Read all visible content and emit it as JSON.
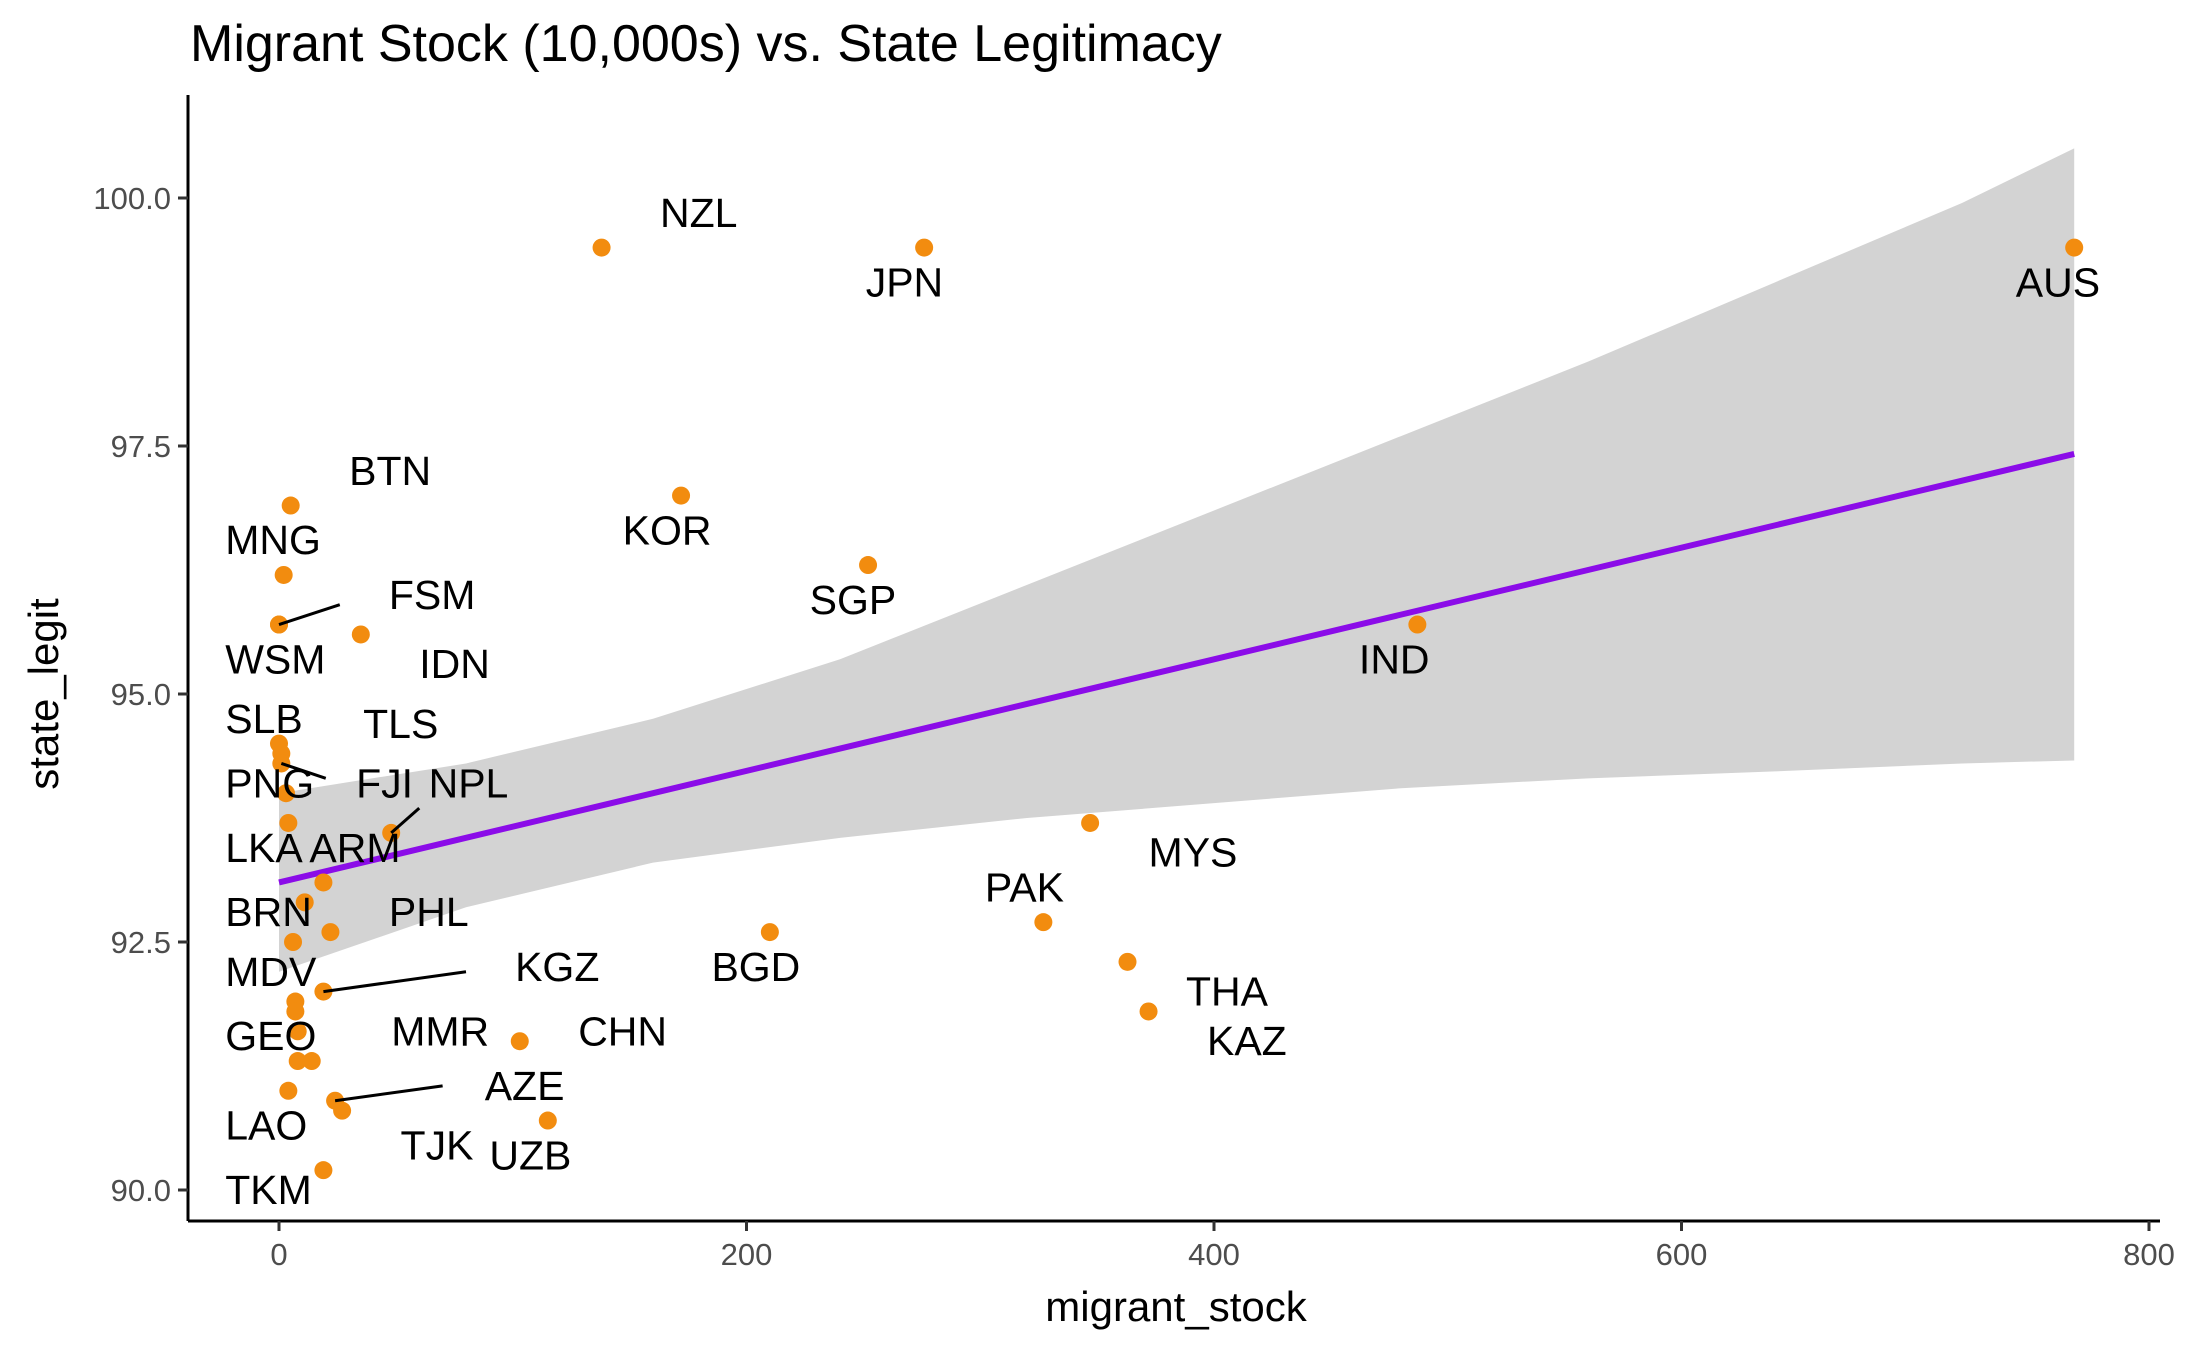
{
  "chart_data": {
    "type": "scatter",
    "title": "Migrant Stock (10,000s) vs. State Legitimacy",
    "xlabel": "migrant_stock",
    "ylabel": "state_legit",
    "xlim": [
      -20,
      800
    ],
    "ylim": [
      89.7,
      101.0
    ],
    "xticks": [
      0,
      200,
      400,
      600,
      800
    ],
    "xtick_labels": [
      "0",
      "200",
      "400",
      "600",
      "800"
    ],
    "yticks": [
      90.0,
      92.5,
      95.0,
      97.5,
      100.0
    ],
    "ytick_labels": [
      "90.0",
      "92.5",
      "95.0",
      "97.5",
      "100.0"
    ],
    "grid": false,
    "colors": {
      "point": "#f28c0f",
      "fit_line": "#8b0ce8",
      "confidence_band": "#d3d3d3",
      "axis": "#000000",
      "tick_text": "#4d4d4d"
    },
    "fit": {
      "method": "lm",
      "x": [
        0,
        80,
        160,
        240,
        320,
        400,
        480,
        560,
        640,
        720,
        768
      ],
      "y": [
        93.1,
        93.55,
        94.0,
        94.45,
        94.9,
        95.35,
        95.8,
        96.25,
        96.7,
        97.15,
        97.42
      ],
      "lower": [
        92.2,
        92.85,
        93.3,
        93.55,
        93.75,
        93.9,
        94.05,
        94.15,
        94.22,
        94.3,
        94.33
      ],
      "upper": [
        94.0,
        94.3,
        94.75,
        95.35,
        96.1,
        96.85,
        97.6,
        98.35,
        99.15,
        99.95,
        100.5
      ]
    },
    "points": [
      {
        "label": "NZL",
        "x": 138,
        "y": 99.5
      },
      {
        "label": "JPN",
        "x": 276,
        "y": 99.5
      },
      {
        "label": "AUS",
        "x": 768,
        "y": 99.5
      },
      {
        "label": "BTN",
        "x": 5,
        "y": 96.9
      },
      {
        "label": "KOR",
        "x": 172,
        "y": 97.0
      },
      {
        "label": "MNG",
        "x": 2,
        "y": 96.2
      },
      {
        "label": "SGP",
        "x": 252,
        "y": 96.3
      },
      {
        "label": "FSM",
        "x": 0,
        "y": 95.7
      },
      {
        "label": "IDN",
        "x": 35,
        "y": 95.6
      },
      {
        "label": "WSM",
        "x": 0,
        "y": 95.7
      },
      {
        "label": "IND",
        "x": 487,
        "y": 95.7
      },
      {
        "label": "SLB",
        "x": 0,
        "y": 94.5
      },
      {
        "label": "TLS",
        "x": 1,
        "y": 94.4
      },
      {
        "label": "FJI",
        "x": 1,
        "y": 94.3
      },
      {
        "label": "PNG",
        "x": 3,
        "y": 94.0
      },
      {
        "label": "NPL",
        "x": 48,
        "y": 93.6
      },
      {
        "label": "LKA",
        "x": 4,
        "y": 93.7
      },
      {
        "label": "ARM",
        "x": 19,
        "y": 93.1
      },
      {
        "label": "MYS",
        "x": 347,
        "y": 93.7
      },
      {
        "label": "BRN",
        "x": 11,
        "y": 92.9
      },
      {
        "label": "PHL",
        "x": 22,
        "y": 92.6
      },
      {
        "label": "PAK",
        "x": 327,
        "y": 92.7
      },
      {
        "label": "BGD",
        "x": 210,
        "y": 92.6
      },
      {
        "label": "MDV",
        "x": 6,
        "y": 92.5
      },
      {
        "label": "KGZ",
        "x": 19,
        "y": 92.0
      },
      {
        "label": "THA",
        "x": 363,
        "y": 92.3
      },
      {
        "label": "GEO",
        "x": 7,
        "y": 91.9
      },
      {
        "label": "MMR",
        "x": 7,
        "y": 91.8
      },
      {
        "label": "KAZ",
        "x": 372,
        "y": 91.8
      },
      {
        "label": "CHN",
        "x": 103,
        "y": 91.5
      },
      {
        "label": "AZE",
        "x": 24,
        "y": 90.9
      },
      {
        "label": "TJK",
        "x": 27,
        "y": 90.8
      },
      {
        "label": "UZB",
        "x": 115,
        "y": 90.7
      },
      {
        "label": "LAO",
        "x": 4,
        "y": 91.0
      },
      {
        "label": "TKM",
        "x": 19,
        "y": 90.2
      },
      {
        "label": "",
        "x": 8,
        "y": 91.6
      },
      {
        "label": "",
        "x": 8,
        "y": 91.3
      },
      {
        "label": "",
        "x": 14,
        "y": 91.3
      }
    ],
    "labels": [
      {
        "text": "NZL",
        "x": 163,
        "y": 99.85
      },
      {
        "text": "JPN",
        "x": 251,
        "y": 99.15
      },
      {
        "text": "AUS",
        "x": 743,
        "y": 99.15
      },
      {
        "text": "BTN",
        "x": 30,
        "y": 97.25
      },
      {
        "text": "KOR",
        "x": 147,
        "y": 96.65
      },
      {
        "text": "MNG",
        "x": -23,
        "y": 96.55
      },
      {
        "text": "SGP",
        "x": 227,
        "y": 95.95
      },
      {
        "text": "FSM",
        "x": 47,
        "y": 96.0
      },
      {
        "text": "IDN",
        "x": 60,
        "y": 95.3
      },
      {
        "text": "WSM",
        "x": -23,
        "y": 95.35
      },
      {
        "text": "IND",
        "x": 462,
        "y": 95.35
      },
      {
        "text": "SLB",
        "x": -23,
        "y": 94.75
      },
      {
        "text": "TLS",
        "x": 36,
        "y": 94.7
      },
      {
        "text": "FJI",
        "x": 33,
        "y": 94.1
      },
      {
        "text": "PNG",
        "x": -23,
        "y": 94.1
      },
      {
        "text": "NPL",
        "x": 64,
        "y": 94.1
      },
      {
        "text": "LKA",
        "x": -23,
        "y": 93.45
      },
      {
        "text": "ARM",
        "x": 13,
        "y": 93.45
      },
      {
        "text": "MYS",
        "x": 372,
        "y": 93.4
      },
      {
        "text": "BRN",
        "x": -23,
        "y": 92.8
      },
      {
        "text": "PHL",
        "x": 47,
        "y": 92.8
      },
      {
        "text": "PAK",
        "x": 302,
        "y": 93.05
      },
      {
        "text": "BGD",
        "x": 185,
        "y": 92.25
      },
      {
        "text": "MDV",
        "x": -23,
        "y": 92.2
      },
      {
        "text": "KGZ",
        "x": 101,
        "y": 92.25
      },
      {
        "text": "THA",
        "x": 388,
        "y": 92.0
      },
      {
        "text": "GEO",
        "x": -23,
        "y": 91.55
      },
      {
        "text": "MMR",
        "x": 48,
        "y": 91.6
      },
      {
        "text": "KAZ",
        "x": 397,
        "y": 91.5
      },
      {
        "text": "CHN",
        "x": 128,
        "y": 91.6
      },
      {
        "text": "AZE",
        "x": 88,
        "y": 91.05
      },
      {
        "text": "TJK",
        "x": 52,
        "y": 90.45
      },
      {
        "text": "UZB",
        "x": 90,
        "y": 90.35
      },
      {
        "text": "LAO",
        "x": -23,
        "y": 90.65
      },
      {
        "text": "TKM",
        "x": -23,
        "y": 90.0
      }
    ],
    "leaders": [
      {
        "from": [
          0,
          95.7
        ],
        "to": [
          26,
          95.9
        ]
      },
      {
        "from": [
          1,
          94.3
        ],
        "to": [
          20,
          94.15
        ]
      },
      {
        "from": [
          48,
          93.6
        ],
        "to": [
          60,
          93.85
        ]
      },
      {
        "from": [
          19,
          92.0
        ],
        "to": [
          80,
          92.2
        ]
      },
      {
        "from": [
          24,
          90.9
        ],
        "to": [
          70,
          91.05
        ]
      }
    ]
  }
}
